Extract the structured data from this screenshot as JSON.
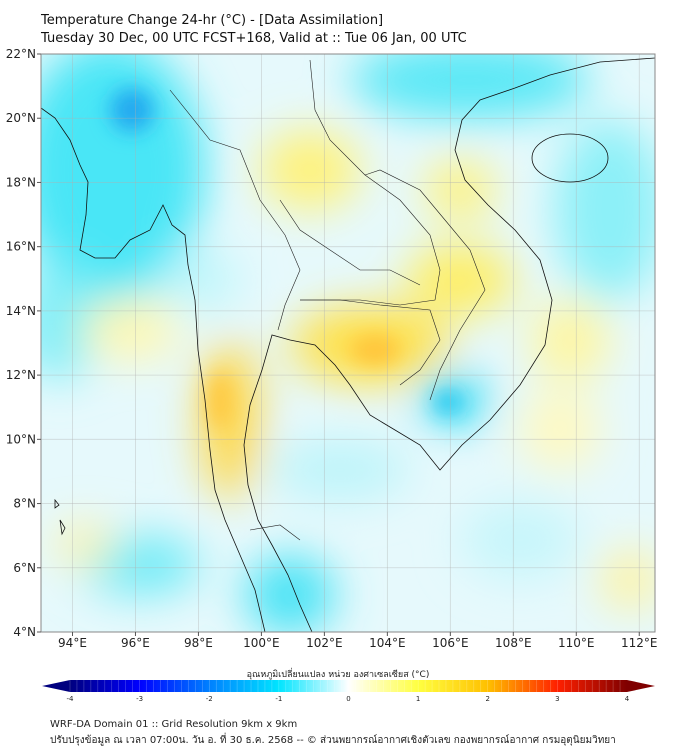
{
  "header": {
    "title": "Temperature Change 24-hr (°C) - [Data Assimilation]",
    "subtitle": "Tuesday 30 Dec, 00 UTC FCST+168, Valid at :: Tue 06 Jan, 00 UTC"
  },
  "map": {
    "lon_range": [
      93,
      112.5
    ],
    "lat_range": [
      4,
      22
    ],
    "lon_ticks": [
      {
        "v": 94,
        "label": "94°E"
      },
      {
        "v": 96,
        "label": "96°E"
      },
      {
        "v": 98,
        "label": "98°E"
      },
      {
        "v": 100,
        "label": "100°E"
      },
      {
        "v": 102,
        "label": "102°E"
      },
      {
        "v": 104,
        "label": "104°E"
      },
      {
        "v": 106,
        "label": "106°E"
      },
      {
        "v": 108,
        "label": "108°E"
      },
      {
        "v": 110,
        "label": "110°E"
      },
      {
        "v": 112,
        "label": "112°E"
      }
    ],
    "lat_ticks": [
      {
        "v": 4,
        "label": "4°N"
      },
      {
        "v": 6,
        "label": "6°N"
      },
      {
        "v": 8,
        "label": "8°N"
      },
      {
        "v": 10,
        "label": "10°N"
      },
      {
        "v": 12,
        "label": "12°N"
      },
      {
        "v": 14,
        "label": "14°N"
      },
      {
        "v": 16,
        "label": "16°N"
      },
      {
        "v": 18,
        "label": "18°N"
      },
      {
        "v": 20,
        "label": "20°N"
      },
      {
        "v": 22,
        "label": "22°N"
      }
    ]
  },
  "colorbar": {
    "label": "อุณหภูมิเปลี่ยนแปลง หน่วย องศาเซลเซียส (°C)",
    "range": [
      -4,
      4
    ],
    "ticks": [
      "-4",
      "-3",
      "-2",
      "-1",
      "0",
      "1",
      "2",
      "3",
      "4"
    ],
    "colors": [
      "#00007f",
      "#0000ff",
      "#0080ff",
      "#00e5ff",
      "#ffffff",
      "#ffff40",
      "#ffc000",
      "#ff2000",
      "#7f0000"
    ]
  },
  "footer": {
    "line1": "WRF-DA Domain 01 :: Grid Resolution 9km x 9km",
    "line2": "ปรับปรุงข้อมูล ณ เวลา 07:00น. วัน อ. ที่ 30 ธ.ค. 2568 -- © ส่วนพยากรณ์อากาศเชิงตัวเลข กองพยากรณ์อากาศ กรมอุตุนิยมวิทยา"
  }
}
